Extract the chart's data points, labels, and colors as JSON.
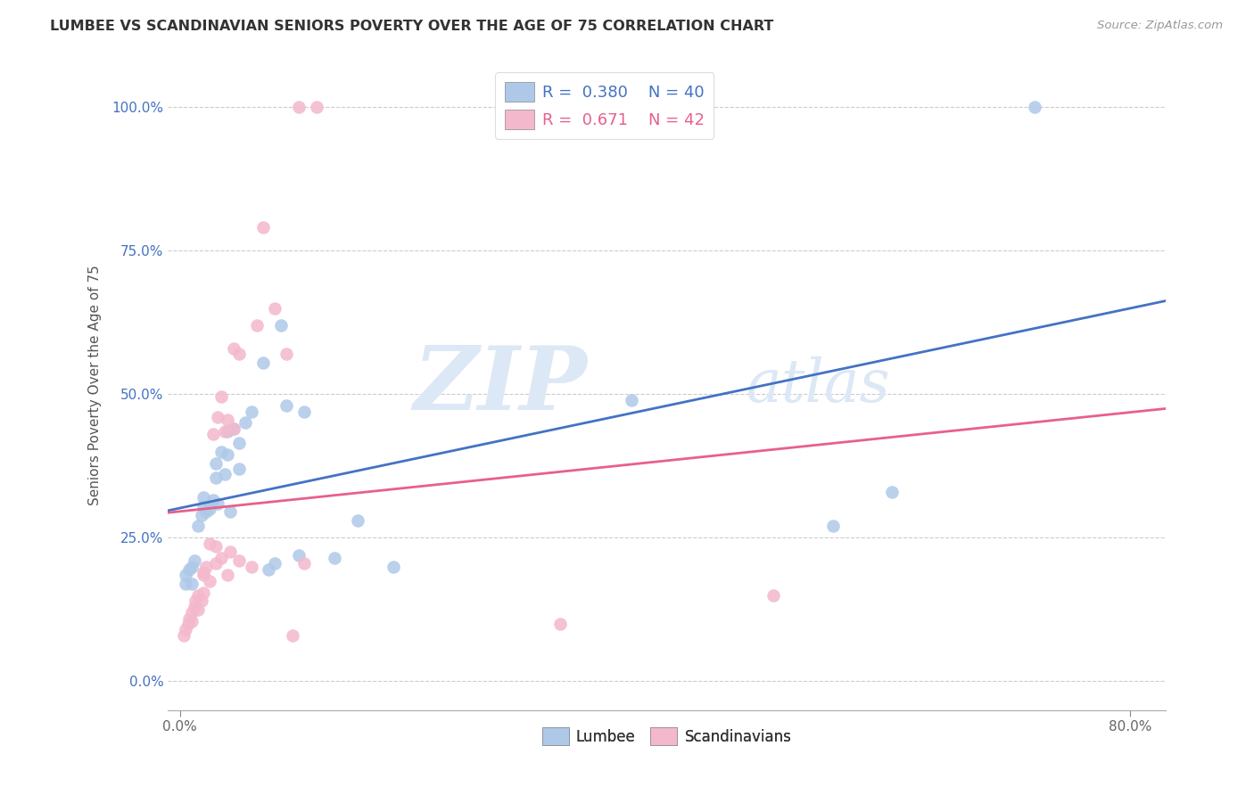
{
  "title": "LUMBEE VS SCANDINAVIAN SENIORS POVERTY OVER THE AGE OF 75 CORRELATION CHART",
  "source": "Source: ZipAtlas.com",
  "ylabel": "Seniors Poverty Over the Age of 75",
  "lumbee_R": 0.38,
  "lumbee_N": 40,
  "scand_R": 0.671,
  "scand_N": 42,
  "lumbee_color": "#aec8e8",
  "scand_color": "#f4b8cc",
  "lumbee_line_color": "#4472c4",
  "scand_line_color": "#e8608a",
  "watermark_zip": "ZIP",
  "watermark_atlas": "atlas",
  "lumbee_points": [
    [
      0.5,
      17.0
    ],
    [
      0.5,
      18.5
    ],
    [
      0.8,
      19.5
    ],
    [
      1.0,
      17.0
    ],
    [
      1.0,
      20.0
    ],
    [
      1.2,
      21.0
    ],
    [
      1.5,
      27.0
    ],
    [
      1.8,
      29.0
    ],
    [
      2.0,
      30.5
    ],
    [
      2.0,
      32.0
    ],
    [
      2.2,
      29.5
    ],
    [
      2.5,
      30.0
    ],
    [
      2.8,
      31.5
    ],
    [
      3.0,
      35.5
    ],
    [
      3.0,
      38.0
    ],
    [
      3.2,
      31.0
    ],
    [
      3.5,
      40.0
    ],
    [
      3.8,
      36.0
    ],
    [
      4.0,
      39.5
    ],
    [
      4.0,
      43.5
    ],
    [
      4.2,
      29.5
    ],
    [
      4.5,
      44.0
    ],
    [
      5.0,
      37.0
    ],
    [
      5.0,
      41.5
    ],
    [
      5.5,
      45.0
    ],
    [
      6.0,
      47.0
    ],
    [
      7.0,
      55.5
    ],
    [
      7.5,
      19.5
    ],
    [
      8.0,
      20.5
    ],
    [
      8.5,
      62.0
    ],
    [
      9.0,
      48.0
    ],
    [
      10.0,
      22.0
    ],
    [
      10.5,
      47.0
    ],
    [
      13.0,
      21.5
    ],
    [
      15.0,
      28.0
    ],
    [
      18.0,
      20.0
    ],
    [
      38.0,
      49.0
    ],
    [
      55.0,
      27.0
    ],
    [
      60.0,
      33.0
    ],
    [
      72.0,
      100.0
    ]
  ],
  "scand_points": [
    [
      0.3,
      8.0
    ],
    [
      0.5,
      9.0
    ],
    [
      0.7,
      10.0
    ],
    [
      0.8,
      11.0
    ],
    [
      1.0,
      10.5
    ],
    [
      1.0,
      12.0
    ],
    [
      1.2,
      13.0
    ],
    [
      1.3,
      14.0
    ],
    [
      1.5,
      12.5
    ],
    [
      1.5,
      15.0
    ],
    [
      1.8,
      14.0
    ],
    [
      2.0,
      15.5
    ],
    [
      2.0,
      18.5
    ],
    [
      2.0,
      19.0
    ],
    [
      2.2,
      20.0
    ],
    [
      2.5,
      17.5
    ],
    [
      2.5,
      24.0
    ],
    [
      2.8,
      43.0
    ],
    [
      3.0,
      20.5
    ],
    [
      3.0,
      23.5
    ],
    [
      3.2,
      46.0
    ],
    [
      3.5,
      49.5
    ],
    [
      3.5,
      21.5
    ],
    [
      3.8,
      43.5
    ],
    [
      4.0,
      45.5
    ],
    [
      4.0,
      18.5
    ],
    [
      4.2,
      22.5
    ],
    [
      4.5,
      58.0
    ],
    [
      4.5,
      44.0
    ],
    [
      5.0,
      21.0
    ],
    [
      5.0,
      57.0
    ],
    [
      6.0,
      20.0
    ],
    [
      6.5,
      62.0
    ],
    [
      7.0,
      79.0
    ],
    [
      8.0,
      65.0
    ],
    [
      9.0,
      57.0
    ],
    [
      9.5,
      8.0
    ],
    [
      10.0,
      100.0
    ],
    [
      11.5,
      100.0
    ],
    [
      10.5,
      20.5
    ],
    [
      32.0,
      10.0
    ],
    [
      50.0,
      15.0
    ]
  ],
  "xlim": [
    -1.0,
    83.0
  ],
  "ylim": [
    -5.0,
    108.0
  ],
  "xtick_positions": [
    0.0,
    80.0
  ],
  "xtick_labels": [
    "0.0%",
    "80.0%"
  ],
  "ytick_positions": [
    0.0,
    25.0,
    50.0,
    75.0,
    100.0
  ],
  "ytick_labels": [
    "0.0%",
    "25.0%",
    "50.0%",
    "75.0%",
    "100.0%"
  ],
  "background_color": "#ffffff"
}
